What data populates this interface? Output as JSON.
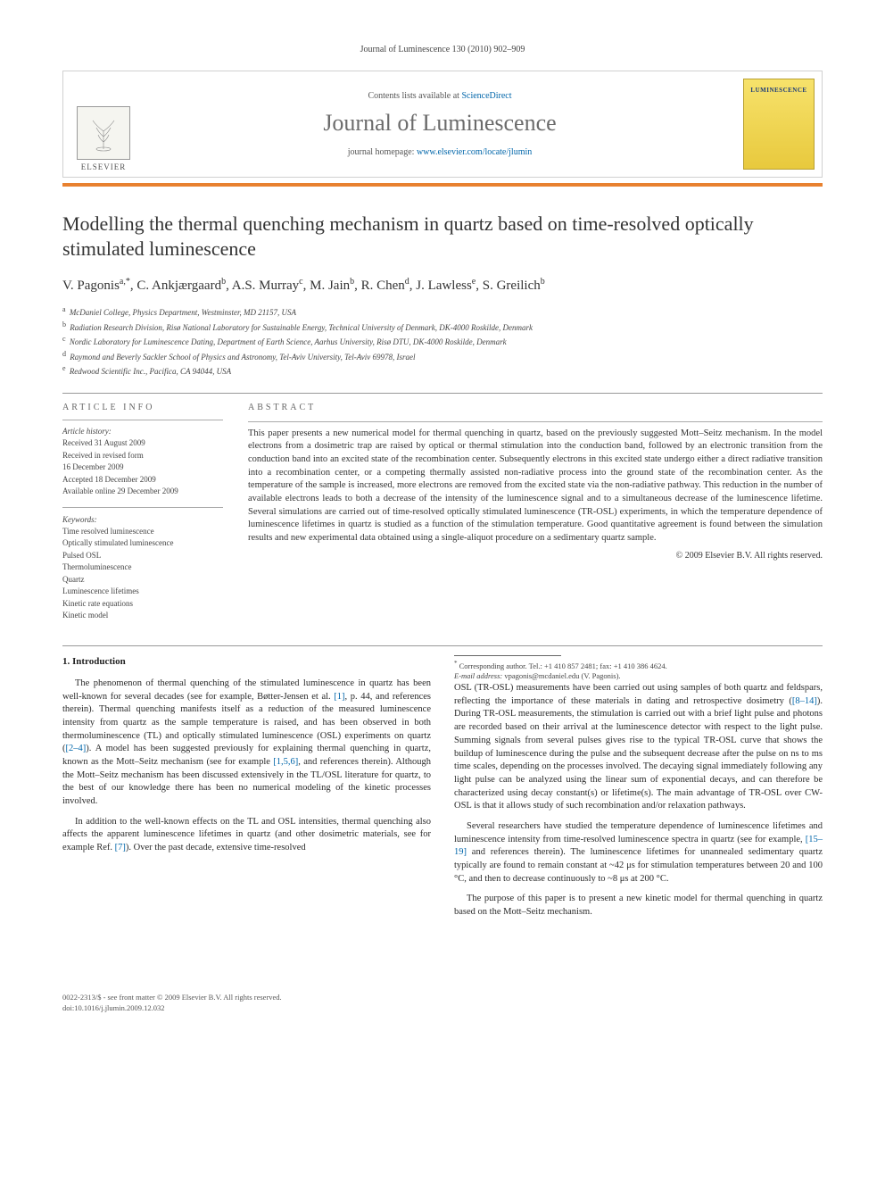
{
  "running_head": "Journal of Luminescence 130 (2010) 902–909",
  "banner": {
    "contents_prefix": "Contents lists available at ",
    "contents_link": "ScienceDirect",
    "journal_name": "Journal of Luminescence",
    "homepage_prefix": "journal homepage: ",
    "homepage_link": "www.elsevier.com/locate/jlumin",
    "publisher": "ELSEVIER",
    "cover_text": "LUMINESCENCE"
  },
  "article": {
    "title": "Modelling the thermal quenching mechanism in quartz based on time-resolved optically stimulated luminescence",
    "authors_html": "V. Pagonis|a,*|, C. Ankjærgaard|b|, A.S. Murray|c|, M. Jain|b|, R. Chen|d|, J. Lawless|e|, S. Greilich|b|",
    "affiliations": [
      {
        "sup": "a",
        "text": "McDaniel College, Physics Department, Westminster, MD 21157, USA"
      },
      {
        "sup": "b",
        "text": "Radiation Research Division, Risø National Laboratory for Sustainable Energy, Technical University of Denmark, DK-4000 Roskilde, Denmark"
      },
      {
        "sup": "c",
        "text": "Nordic Laboratory for Luminescence Dating, Department of Earth Science, Aarhus University, Risø DTU, DK-4000 Roskilde, Denmark"
      },
      {
        "sup": "d",
        "text": "Raymond and Beverly Sackler School of Physics and Astronomy, Tel-Aviv University, Tel-Aviv 69978, Israel"
      },
      {
        "sup": "e",
        "text": "Redwood Scientific Inc., Pacifica, CA 94044, USA"
      }
    ]
  },
  "info": {
    "head": "ARTICLE INFO",
    "history_label": "Article history:",
    "history": [
      "Received 31 August 2009",
      "Received in revised form",
      "16 December 2009",
      "Accepted 18 December 2009",
      "Available online 29 December 2009"
    ],
    "keywords_label": "Keywords:",
    "keywords": [
      "Time resolved luminescence",
      "Optically stimulated luminescence",
      "Pulsed OSL",
      "Thermoluminescence",
      "Quartz",
      "Luminescence lifetimes",
      "Kinetic rate equations",
      "Kinetic model"
    ]
  },
  "abstract": {
    "head": "ABSTRACT",
    "body": "This paper presents a new numerical model for thermal quenching in quartz, based on the previously suggested Mott–Seitz mechanism. In the model electrons from a dosimetric trap are raised by optical or thermal stimulation into the conduction band, followed by an electronic transition from the conduction band into an excited state of the recombination center. Subsequently electrons in this excited state undergo either a direct radiative transition into a recombination center, or a competing thermally assisted non-radiative process into the ground state of the recombination center. As the temperature of the sample is increased, more electrons are removed from the excited state via the non-radiative pathway. This reduction in the number of available electrons leads to both a decrease of the intensity of the luminescence signal and to a simultaneous decrease of the luminescence lifetime. Several simulations are carried out of time-resolved optically stimulated luminescence (TR-OSL) experiments, in which the temperature dependence of luminescence lifetimes in quartz is studied as a function of the stimulation temperature. Good quantitative agreement is found between the simulation results and new experimental data obtained using a single-aliquot procedure on a sedimentary quartz sample.",
    "copyright": "© 2009 Elsevier B.V. All rights reserved."
  },
  "body": {
    "section_title": "1. Introduction",
    "p1": "The phenomenon of thermal quenching of the stimulated luminescence in quartz has been well-known for several decades (see for example, Bøtter-Jensen et al. [1], p. 44, and references therein). Thermal quenching manifests itself as a reduction of the measured luminescence intensity from quartz as the sample temperature is raised, and has been observed in both thermoluminescence (TL) and optically stimulated luminescence (OSL) experiments on quartz ([2–4]). A model has been suggested previously for explaining thermal quenching in quartz, known as the Mott–Seitz mechanism (see for example [1,5,6], and references therein). Although the Mott–Seitz mechanism has been discussed extensively in the TL/OSL literature for quartz, to the best of our knowledge there has been no numerical modeling of the kinetic processes involved.",
    "p2": "In addition to the well-known effects on the TL and OSL intensities, thermal quenching also affects the apparent luminescence lifetimes in quartz (and other dosimetric materials, see for example Ref. [7]). Over the past decade, extensive time-resolved",
    "p3": "OSL (TR-OSL) measurements have been carried out using samples of both quartz and feldspars, reflecting the importance of these materials in dating and retrospective dosimetry ([8–14]). During TR-OSL measurements, the stimulation is carried out with a brief light pulse and photons are recorded based on their arrival at the luminescence detector with respect to the light pulse. Summing signals from several pulses gives rise to the typical TR-OSL curve that shows the buildup of luminescence during the pulse and the subsequent decrease after the pulse on ns to ms time scales, depending on the processes involved. The decaying signal immediately following any light pulse can be analyzed using the linear sum of exponential decays, and can therefore be characterized using decay constant(s) or lifetime(s). The main advantage of TR-OSL over CW-OSL is that it allows study of such recombination and/or relaxation pathways.",
    "p4": "Several researchers have studied the temperature dependence of luminescence lifetimes and luminescence intensity from time-resolved luminescence spectra in quartz (see for example, [15–19] and references therein). The luminescence lifetimes for unannealed sedimentary quartz typically are found to remain constant at ~42 μs for stimulation temperatures between 20 and 100 °C, and then to decrease continuously to ~8 μs at 200 °C.",
    "p5": "The purpose of this paper is to present a new kinetic model for thermal quenching in quartz based on the Mott–Seitz mechanism."
  },
  "footnote": {
    "marker": "*",
    "line1": "Corresponding author. Tel.: +1 410 857 2481; fax: +1 410 386 4624.",
    "line2_label": "E-mail address:",
    "line2_value": " vpagonis@mcdaniel.edu (V. Pagonis)."
  },
  "footer": {
    "left1": "0022-2313/$ - see front matter © 2009 Elsevier B.V. All rights reserved.",
    "left2": "doi:10.1016/j.jlumin.2009.12.032"
  },
  "colors": {
    "orange_bar": "#e8812f",
    "link": "#0066aa",
    "cover_top": "#f7e26b",
    "cover_bottom": "#e8c93d"
  }
}
